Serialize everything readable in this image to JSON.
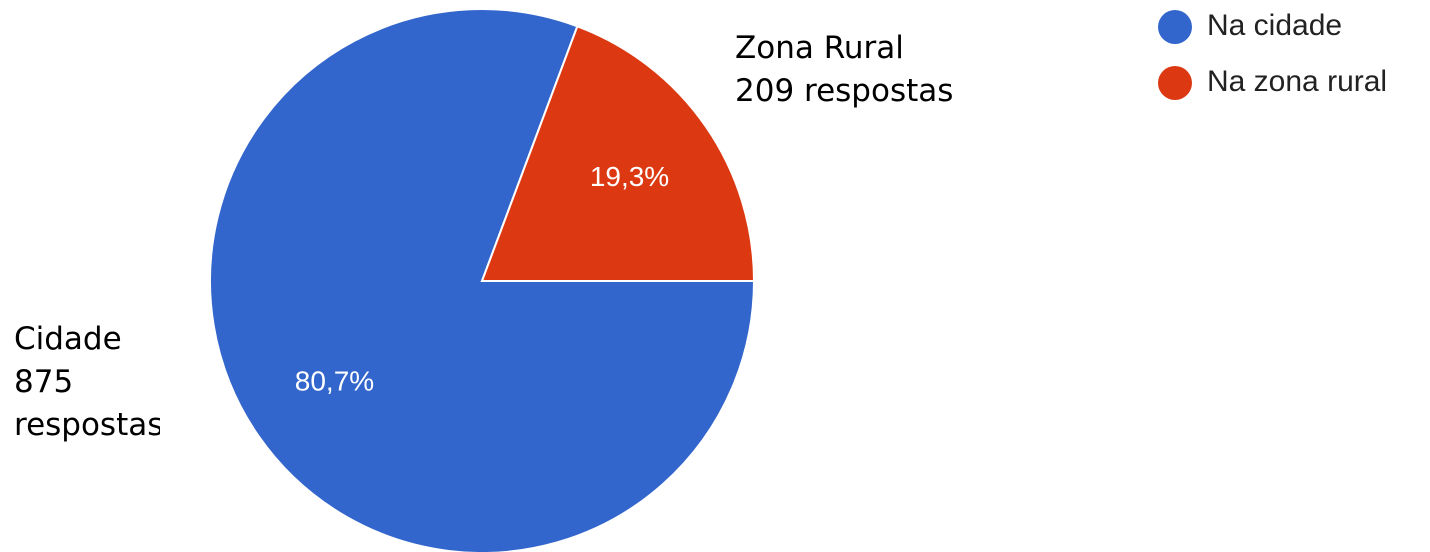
{
  "chart_data": {
    "type": "pie",
    "categories": [
      "Na cidade",
      "Na zona rural"
    ],
    "values": [
      80.7,
      19.3
    ],
    "value_labels": [
      "80,7%",
      "19,3%"
    ],
    "colors": [
      "#3366cc",
      "#dc3912"
    ],
    "legend": "top-right",
    "annotations": [
      {
        "lines": [
          "Cidade",
          "875",
          "respostas"
        ]
      },
      {
        "lines": [
          "Zona Rural",
          "209 respostas"
        ]
      }
    ]
  }
}
